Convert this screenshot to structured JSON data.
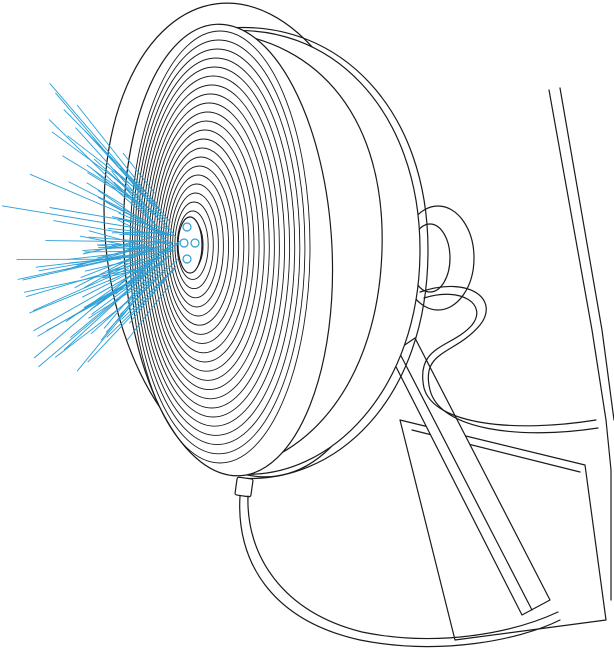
{
  "illustration": {
    "subject": "lamp-with-concentric-reflector",
    "colors": {
      "line": "#1a1a1a",
      "rays": "#2a9fd6",
      "background": "#ffffff"
    },
    "reflector_ring_count": 22,
    "ray_count": 110,
    "led_count": 4
  }
}
